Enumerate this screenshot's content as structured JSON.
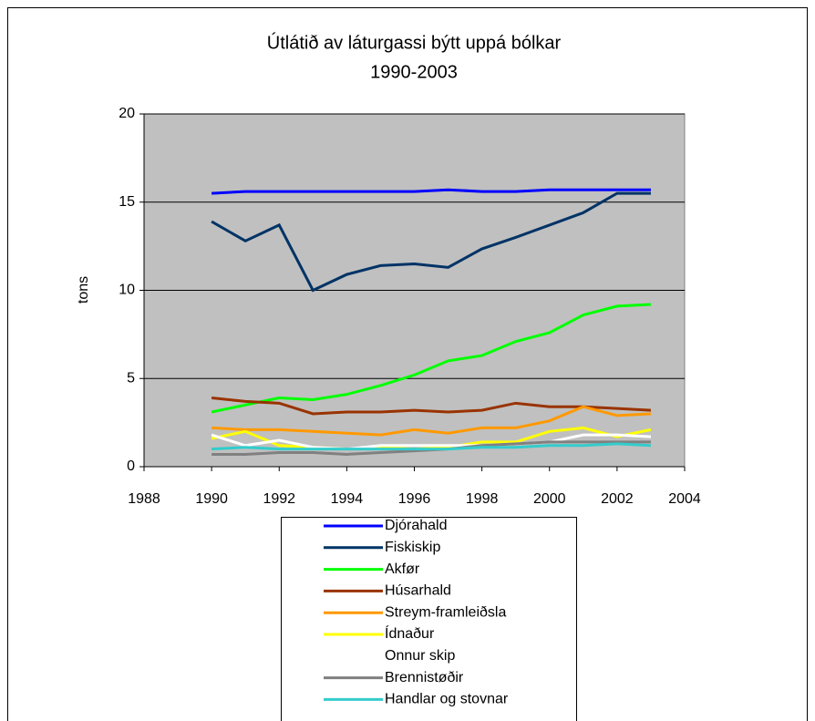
{
  "chart_data": {
    "type": "line",
    "title": "Útlátið av láturgassi býtt uppá bólkar",
    "subtitle": "1990-2003",
    "y_label": "tons",
    "x": [
      1990,
      1991,
      1992,
      1993,
      1994,
      1995,
      1996,
      1997,
      1998,
      1999,
      2000,
      2001,
      2002,
      2003
    ],
    "xlim": [
      1988,
      2004
    ],
    "xticks": [
      1988,
      1990,
      1992,
      1994,
      1996,
      1998,
      2000,
      2002,
      2004
    ],
    "ylim": [
      0,
      20
    ],
    "yticks": [
      0,
      5,
      10,
      15,
      20
    ],
    "grid": true,
    "legend": "bottom",
    "series": [
      {
        "name": "Djórahald",
        "color": "#0000ff",
        "values": [
          15.5,
          15.6,
          15.6,
          15.6,
          15.6,
          15.6,
          15.6,
          15.7,
          15.6,
          15.6,
          15.7,
          15.7,
          15.7,
          15.7
        ]
      },
      {
        "name": "Fiskiskip",
        "color": "#003366",
        "values": [
          13.9,
          12.8,
          13.7,
          10.0,
          10.9,
          11.4,
          11.5,
          11.3,
          12.35,
          13.0,
          13.7,
          14.4,
          15.5,
          15.5
        ]
      },
      {
        "name": "Akfør",
        "color": "#00ff00",
        "values": [
          3.1,
          3.5,
          3.9,
          3.8,
          4.1,
          4.6,
          5.2,
          6.0,
          6.3,
          7.1,
          7.6,
          8.6,
          9.1,
          9.2
        ]
      },
      {
        "name": "Húsarhald",
        "color": "#993300",
        "values": [
          3.9,
          3.7,
          3.6,
          3.0,
          3.1,
          3.1,
          3.2,
          3.1,
          3.2,
          3.6,
          3.4,
          3.4,
          3.3,
          3.2
        ]
      },
      {
        "name": "Streym-framleiðsla",
        "color": "#ff9900",
        "values": [
          2.2,
          2.1,
          2.1,
          2.0,
          1.9,
          1.8,
          2.1,
          1.9,
          2.2,
          2.2,
          2.6,
          3.4,
          2.9,
          3.0
        ]
      },
      {
        "name": "Ídnaður",
        "color": "#ffff00",
        "values": [
          1.6,
          2.0,
          1.2,
          1.1,
          1.0,
          1.1,
          1.0,
          1.1,
          1.4,
          1.4,
          2.0,
          2.2,
          1.7,
          2.1
        ]
      },
      {
        "name": "Onnur skip",
        "color": "#ffffff",
        "values": [
          1.8,
          1.2,
          1.5,
          1.1,
          1.0,
          1.2,
          1.2,
          1.2,
          1.2,
          1.3,
          1.4,
          1.8,
          1.8,
          1.7
        ]
      },
      {
        "name": "Brennistøðir",
        "color": "#808080",
        "values": [
          0.7,
          0.7,
          0.8,
          0.8,
          0.7,
          0.8,
          0.9,
          1.0,
          1.2,
          1.3,
          1.4,
          1.4,
          1.4,
          1.4
        ]
      },
      {
        "name": "Handlar og stovnar",
        "color": "#33cccc",
        "values": [
          1.0,
          1.1,
          1.0,
          1.0,
          1.0,
          1.0,
          1.0,
          1.0,
          1.1,
          1.1,
          1.2,
          1.2,
          1.3,
          1.2
        ]
      }
    ]
  }
}
